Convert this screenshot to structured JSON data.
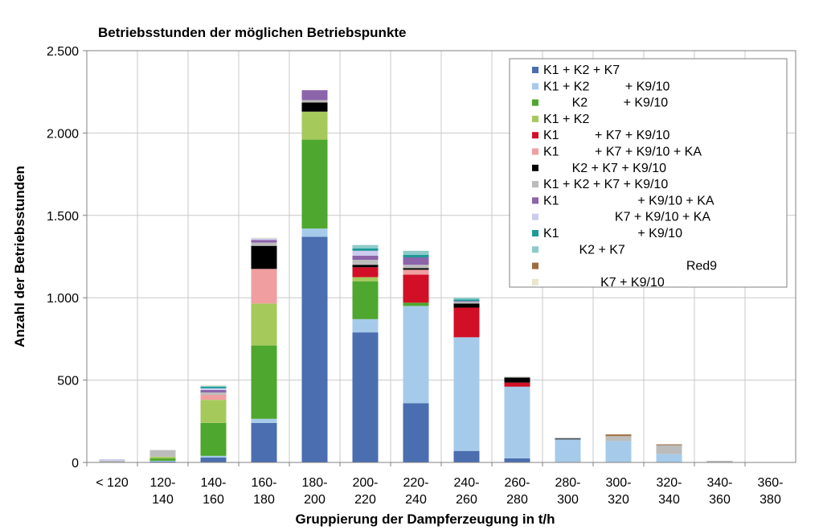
{
  "chart_data": {
    "type": "bar",
    "stacked": true,
    "title": "Betriebsstunden der möglichen Betriebspunkte",
    "xlabel": "Gruppierung der Dampferzeugung in t/h",
    "ylabel": "Anzahl der Betriebsstunden",
    "ylim": [
      0,
      2500
    ],
    "yticks": [
      0,
      500,
      1000,
      1500,
      2000,
      2500
    ],
    "ytick_labels": [
      "0",
      "500",
      "1.000",
      "1.500",
      "2.000",
      "2.500"
    ],
    "grid": true,
    "legend_position": "top-right",
    "categories": [
      [
        "< 120",
        ""
      ],
      [
        "120-",
        "140"
      ],
      [
        "140-",
        "160"
      ],
      [
        "160-",
        "180"
      ],
      [
        "180-",
        "200"
      ],
      [
        "200-",
        "220"
      ],
      [
        "220-",
        "240"
      ],
      [
        "240-",
        "260"
      ],
      [
        "260-",
        "280"
      ],
      [
        "280-",
        "300"
      ],
      [
        "300-",
        "320"
      ],
      [
        "320-",
        "340"
      ],
      [
        "340-",
        "360"
      ],
      [
        "360-",
        "380"
      ]
    ],
    "series": [
      {
        "name": "K1 + K2 + K7",
        "color": "#4a6eb0",
        "values": [
          0,
          5,
          30,
          240,
          1370,
          790,
          360,
          70,
          25,
          0,
          0,
          0,
          0,
          0
        ]
      },
      {
        "name": "K1 + K2          + K9/10",
        "color": "#a6cbea",
        "values": [
          0,
          5,
          10,
          25,
          50,
          80,
          590,
          690,
          435,
          140,
          130,
          50,
          0,
          0
        ]
      },
      {
        "name": "        K2          + K9/10",
        "color": "#4ea72e",
        "values": [
          0,
          15,
          200,
          445,
          540,
          230,
          20,
          0,
          0,
          0,
          0,
          0,
          0,
          0
        ]
      },
      {
        "name": "K1 + K2",
        "color": "#a6c95c",
        "values": [
          0,
          10,
          140,
          255,
          170,
          25,
          0,
          0,
          0,
          0,
          0,
          0,
          0,
          0
        ]
      },
      {
        "name": "K1          + K7 + K9/10",
        "color": "#d10f26",
        "values": [
          0,
          0,
          0,
          0,
          0,
          60,
          170,
          180,
          25,
          0,
          0,
          0,
          0,
          0
        ]
      },
      {
        "name": "K1          + K7 + K9/10 + KA",
        "color": "#f09ea0",
        "values": [
          0,
          0,
          30,
          210,
          0,
          0,
          30,
          0,
          0,
          0,
          0,
          0,
          0,
          0
        ]
      },
      {
        "name": "        K2 + K7 + K9/10",
        "color": "#000000",
        "values": [
          0,
          0,
          0,
          140,
          55,
          15,
          10,
          25,
          30,
          5,
          0,
          0,
          0,
          0
        ]
      },
      {
        "name": "K1 + K2 + K7 + K9/10",
        "color": "#bcbcbc",
        "values": [
          10,
          40,
          15,
          20,
          15,
          30,
          20,
          10,
          5,
          5,
          30,
          55,
          10,
          0
        ]
      },
      {
        "name": "K1                      + K9/10 + KA",
        "color": "#8b64aa",
        "values": [
          0,
          0,
          15,
          15,
          60,
          25,
          45,
          5,
          0,
          0,
          0,
          0,
          0,
          0
        ]
      },
      {
        "name": "                    K7 + K9/10 + KA",
        "color": "#ccccee",
        "values": [
          10,
          0,
          10,
          10,
          0,
          30,
          0,
          0,
          0,
          0,
          0,
          0,
          0,
          0
        ]
      },
      {
        "name": "K1                      + K9/10",
        "color": "#1b9a96",
        "values": [
          0,
          0,
          10,
          0,
          0,
          15,
          15,
          10,
          0,
          0,
          0,
          0,
          0,
          0
        ]
      },
      {
        "name": "          K2 + K7",
        "color": "#8ccbc9",
        "values": [
          0,
          0,
          5,
          0,
          0,
          20,
          25,
          10,
          0,
          0,
          0,
          0,
          0,
          0
        ]
      },
      {
        "name": "                                        Red9",
        "color": "#9e6b3a",
        "values": [
          0,
          0,
          0,
          0,
          0,
          0,
          0,
          0,
          0,
          0,
          10,
          5,
          0,
          0
        ]
      },
      {
        "name": "                K7 + K9/10",
        "color": "#eae6cf",
        "values": [
          0,
          0,
          5,
          5,
          0,
          0,
          0,
          0,
          0,
          0,
          0,
          0,
          0,
          0
        ]
      }
    ]
  }
}
